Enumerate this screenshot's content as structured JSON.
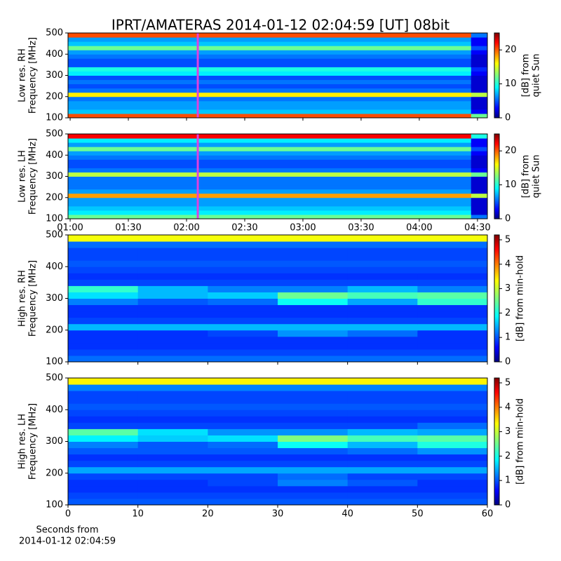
{
  "chart_data": [
    {
      "type": "heatmap",
      "title": "IPRT/AMATERAS 2014-01-12 02:04:59 [UT]   08bit",
      "ylabel": [
        "Low res. RH",
        "Frequency [MHz]"
      ],
      "colorbar_label": [
        "[dB] from",
        "quiet Sun"
      ],
      "colormap": "jet",
      "xlim": [
        58.9,
        275.1
      ],
      "xticks": [
        60,
        90,
        120,
        150,
        180,
        210,
        240,
        270
      ],
      "show_xtick_labels": false,
      "ylim": [
        100,
        500
      ],
      "yticks": [
        100,
        200,
        300,
        400,
        500
      ],
      "clim": [
        0,
        25
      ],
      "cticks": [
        0,
        10,
        20
      ],
      "vline": 125.8,
      "vline_color": "#e040e0",
      "xbins": [
        58.9,
        266.7,
        275.1
      ],
      "ybins": [
        100,
        120,
        140,
        160,
        180,
        200,
        220,
        240,
        260,
        280,
        300,
        320,
        340,
        360,
        380,
        400,
        420,
        440,
        460,
        480,
        500
      ],
      "z": [
        [
          20,
          12
        ],
        [
          8,
          3
        ],
        [
          7,
          2
        ],
        [
          7,
          2
        ],
        [
          6,
          2
        ],
        [
          16,
          14
        ],
        [
          6,
          2
        ],
        [
          5,
          2
        ],
        [
          6,
          2
        ],
        [
          5,
          2
        ],
        [
          9,
          3
        ],
        [
          10,
          4
        ],
        [
          5,
          2
        ],
        [
          5,
          2
        ],
        [
          6,
          2
        ],
        [
          7,
          3
        ],
        [
          12,
          5
        ],
        [
          8,
          3
        ],
        [
          7,
          3
        ],
        [
          20,
          6
        ]
      ]
    },
    {
      "type": "heatmap",
      "ylabel": [
        "Low res. LH",
        "Frequency [MHz]"
      ],
      "colorbar_label": [
        "[dB] from",
        "quiet Sun"
      ],
      "colormap": "jet",
      "xlim": [
        58.9,
        275.1
      ],
      "xticks": [
        {
          "value": 60,
          "label": "01:00"
        },
        {
          "value": 90,
          "label": "01:30"
        },
        {
          "value": 120,
          "label": "02:00"
        },
        {
          "value": 150,
          "label": "02:30"
        },
        {
          "value": 180,
          "label": "03:00"
        },
        {
          "value": 210,
          "label": "03:30"
        },
        {
          "value": 240,
          "label": "04:00"
        },
        {
          "value": 270,
          "label": "04:30"
        }
      ],
      "show_xtick_labels": true,
      "ylim": [
        100,
        500
      ],
      "yticks": [
        100,
        200,
        300,
        400,
        500
      ],
      "clim": [
        0,
        25
      ],
      "cticks": [
        0,
        10,
        20
      ],
      "vline": 125.8,
      "vline_color": "#e040e0",
      "xbins": [
        58.9,
        266.7,
        275.1
      ],
      "ybins": [
        100,
        120,
        140,
        160,
        180,
        200,
        220,
        240,
        260,
        280,
        300,
        320,
        340,
        360,
        380,
        400,
        420,
        440,
        460,
        480,
        500
      ],
      "z": [
        [
          12,
          6
        ],
        [
          9,
          2
        ],
        [
          8,
          2
        ],
        [
          7,
          2
        ],
        [
          7,
          2
        ],
        [
          18,
          14
        ],
        [
          7,
          2
        ],
        [
          6,
          2
        ],
        [
          6,
          2
        ],
        [
          6,
          2
        ],
        [
          14,
          12
        ],
        [
          6,
          3
        ],
        [
          5,
          2
        ],
        [
          5,
          2
        ],
        [
          6,
          2
        ],
        [
          7,
          3
        ],
        [
          12,
          5
        ],
        [
          7,
          3
        ],
        [
          9,
          3
        ],
        [
          22,
          10
        ]
      ]
    },
    {
      "type": "heatmap",
      "ylabel": [
        "High res. RH",
        "Frequency [MHz]"
      ],
      "colorbar_label": [
        "[dB] from min-hold"
      ],
      "colormap": "jet",
      "xlim": [
        0,
        60
      ],
      "xticks": [
        0,
        10,
        20,
        30,
        40,
        50,
        60
      ],
      "show_xtick_labels": false,
      "ylim": [
        100,
        500
      ],
      "yticks": [
        100,
        200,
        300,
        400,
        500
      ],
      "clim": [
        0,
        5.2
      ],
      "cticks": [
        0,
        1,
        2,
        3,
        4,
        5
      ],
      "xbins": [
        0,
        10,
        20,
        30,
        40,
        50,
        60
      ],
      "ybins": [
        100,
        120,
        140,
        160,
        180,
        200,
        220,
        240,
        260,
        280,
        300,
        320,
        340,
        360,
        380,
        400,
        420,
        440,
        460,
        480,
        500
      ],
      "z": [
        [
          1.2,
          1.2,
          1.2,
          1.2,
          1.2,
          1.2
        ],
        [
          1.0,
          1.0,
          1.0,
          1.0,
          1.0,
          1.0
        ],
        [
          0.9,
          0.9,
          0.9,
          0.9,
          0.9,
          0.9
        ],
        [
          0.9,
          0.9,
          0.9,
          0.9,
          0.9,
          0.9
        ],
        [
          0.9,
          0.9,
          1.0,
          1.4,
          1.2,
          0.9
        ],
        [
          1.6,
          1.6,
          1.6,
          1.6,
          1.6,
          1.6
        ],
        [
          1.0,
          1.0,
          1.0,
          1.0,
          1.0,
          1.0
        ],
        [
          0.9,
          0.9,
          0.9,
          0.9,
          0.9,
          0.9
        ],
        [
          0.9,
          0.9,
          0.9,
          0.9,
          0.9,
          0.9
        ],
        [
          1.3,
          1.1,
          1.2,
          2.0,
          1.5,
          2.2
        ],
        [
          1.8,
          1.6,
          1.7,
          2.5,
          2.3,
          2.4
        ],
        [
          2.2,
          1.6,
          1.3,
          1.3,
          1.6,
          1.3
        ],
        [
          1.0,
          1.0,
          1.0,
          1.0,
          1.0,
          1.0
        ],
        [
          0.9,
          0.9,
          0.9,
          0.9,
          0.9,
          0.9
        ],
        [
          1.0,
          1.0,
          1.0,
          1.0,
          1.0,
          1.0
        ],
        [
          1.1,
          1.1,
          1.1,
          1.1,
          1.1,
          1.1
        ],
        [
          1.0,
          1.0,
          1.0,
          1.0,
          1.0,
          1.0
        ],
        [
          1.0,
          1.0,
          1.0,
          1.0,
          1.0,
          1.0
        ],
        [
          1.2,
          1.2,
          1.2,
          1.2,
          1.2,
          1.2
        ],
        [
          3.2,
          3.2,
          3.2,
          3.2,
          3.2,
          3.2
        ]
      ]
    },
    {
      "type": "heatmap",
      "ylabel": [
        "High res. LH",
        "Frequency [MHz]"
      ],
      "colorbar_label": [
        "[dB] from min-hold"
      ],
      "colormap": "jet",
      "xlabel": [
        "Seconds from",
        "2014-01-12 02:04:59"
      ],
      "xlim": [
        0,
        60
      ],
      "xticks": [
        0,
        10,
        20,
        30,
        40,
        50,
        60
      ],
      "show_xtick_labels": true,
      "ylim": [
        100,
        500
      ],
      "yticks": [
        100,
        200,
        300,
        400,
        500
      ],
      "clim": [
        0,
        5.2
      ],
      "cticks": [
        0,
        1,
        2,
        3,
        4,
        5
      ],
      "xbins": [
        0,
        10,
        20,
        30,
        40,
        50,
        60
      ],
      "ybins": [
        100,
        120,
        140,
        160,
        180,
        200,
        220,
        240,
        260,
        280,
        300,
        320,
        340,
        360,
        380,
        400,
        420,
        440,
        460,
        480,
        500
      ],
      "z": [
        [
          1.1,
          1.1,
          1.1,
          1.1,
          1.1,
          1.1
        ],
        [
          1.0,
          1.0,
          1.0,
          1.0,
          1.0,
          1.0
        ],
        [
          0.9,
          0.9,
          0.9,
          0.9,
          0.9,
          0.9
        ],
        [
          0.9,
          0.9,
          1.0,
          1.3,
          1.1,
          0.9
        ],
        [
          1.0,
          1.0,
          1.0,
          1.2,
          1.0,
          1.0
        ],
        [
          1.5,
          1.5,
          1.5,
          1.5,
          1.5,
          1.5
        ],
        [
          1.0,
          1.0,
          1.0,
          1.0,
          1.0,
          1.0
        ],
        [
          0.9,
          0.9,
          0.9,
          0.9,
          0.9,
          0.9
        ],
        [
          1.1,
          1.1,
          1.1,
          1.1,
          1.2,
          1.4
        ],
        [
          1.3,
          1.1,
          1.2,
          2.0,
          1.6,
          2.1
        ],
        [
          1.9,
          1.7,
          1.8,
          2.6,
          2.3,
          2.4
        ],
        [
          2.4,
          1.8,
          1.4,
          1.4,
          1.6,
          1.5
        ],
        [
          1.0,
          1.0,
          1.0,
          1.0,
          1.0,
          1.2
        ],
        [
          0.9,
          0.9,
          0.9,
          0.9,
          0.9,
          0.9
        ],
        [
          1.0,
          1.0,
          1.0,
          1.0,
          1.0,
          1.0
        ],
        [
          1.1,
          1.1,
          1.1,
          1.1,
          1.1,
          1.1
        ],
        [
          1.0,
          1.0,
          1.0,
          1.0,
          1.0,
          1.0
        ],
        [
          1.0,
          1.0,
          1.0,
          1.0,
          1.0,
          1.0
        ],
        [
          1.3,
          1.3,
          1.3,
          1.3,
          1.3,
          1.3
        ],
        [
          3.3,
          3.3,
          3.3,
          3.3,
          3.3,
          3.3
        ]
      ]
    }
  ]
}
